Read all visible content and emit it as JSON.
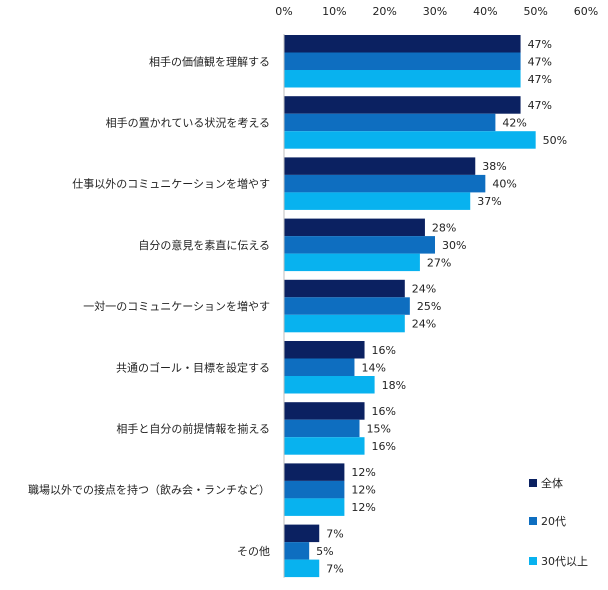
{
  "chart_data": {
    "type": "bar",
    "orientation": "horizontal",
    "categories": [
      "相手の価値観を理解する",
      "相手の置かれている状況を考える",
      "仕事以外のコミュニケーションを増やす",
      "自分の意見を素直に伝える",
      "一対一のコミュニケーションを増やす",
      "共通のゴール・目標を設定する",
      "相手と自分の前提情報を揃える",
      "職場以外での接点を持つ（飲み会・ランチなど）",
      "その他"
    ],
    "series": [
      {
        "name": "全体",
        "color": "#0b2161",
        "values": [
          47,
          47,
          38,
          28,
          24,
          16,
          16,
          12,
          7
        ]
      },
      {
        "name": "20代",
        "color": "#0e6ec0",
        "values": [
          47,
          42,
          40,
          30,
          25,
          14,
          15,
          12,
          5
        ]
      },
      {
        "name": "30代以上",
        "color": "#08b2ef",
        "values": [
          47,
          50,
          37,
          27,
          24,
          18,
          16,
          12,
          7
        ]
      }
    ],
    "xlim": [
      0,
      60
    ],
    "xticks": [
      "0%",
      "10%",
      "20%",
      "30%",
      "40%",
      "50%",
      "60%"
    ],
    "value_suffix": "%",
    "legend_position": "bottom-right",
    "grid": false
  }
}
